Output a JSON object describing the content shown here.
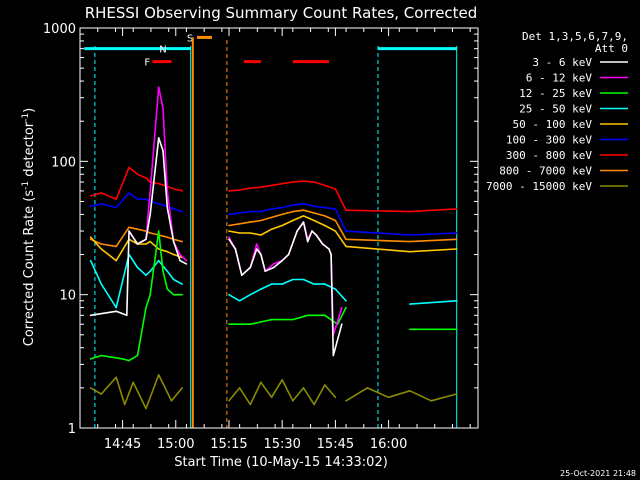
{
  "chart_data": {
    "type": "line",
    "title": "RHESSI Observing Summary Count Rates, Corrected",
    "ylabel_main": "Corrected Count Rate (s",
    "ylabel_exp1": "-1",
    "ylabel_mid": " detector",
    "ylabel_exp2": "-1",
    "ylabel_end": ")",
    "xlabel": "Start Time (10-May-15 14:33:02)",
    "footer": "25-Oct-2021 21:48",
    "legend_header": [
      "Det 1,3,5,6,7,9,",
      "Att 0"
    ],
    "yscale": "log",
    "ylim": [
      1,
      1000
    ],
    "y_ticks": [
      {
        "v": 1,
        "label": "1"
      },
      {
        "v": 10,
        "label": "10"
      },
      {
        "v": 100,
        "label": "100"
      },
      {
        "v": 1000,
        "label": "1000"
      }
    ],
    "xlim": [
      14.55,
      16.42
    ],
    "x_ticks": [
      {
        "v": 14.75,
        "label": "14:45"
      },
      {
        "v": 15.0,
        "label": "15:00"
      },
      {
        "v": 15.25,
        "label": "15:15"
      },
      {
        "v": 15.5,
        "label": "15:30"
      },
      {
        "v": 15.75,
        "label": "15:45"
      },
      {
        "v": 16.0,
        "label": "16:00"
      }
    ],
    "flags": [
      {
        "label": "N",
        "color": "#00ffff",
        "y": 700
      },
      {
        "label": "F",
        "color": "#ff0000",
        "y": 560
      },
      {
        "label": "S",
        "color": "#ff8c00",
        "y": 850
      }
    ],
    "night_lines": [
      14.62,
      15.07,
      15.95,
      16.32
    ],
    "saa_lines": [
      15.24
    ],
    "series": [
      {
        "name": "3 - 6 keV",
        "color": "#ffffff",
        "segments": [
          [
            [
              14.6,
              7
            ],
            [
              14.72,
              7.5
            ],
            [
              14.77,
              7
            ],
            [
              14.78,
              30
            ],
            [
              14.82,
              24
            ],
            [
              14.86,
              26
            ],
            [
              14.88,
              40
            ],
            [
              14.92,
              150
            ],
            [
              14.94,
              120
            ],
            [
              14.96,
              45
            ],
            [
              14.99,
              25
            ],
            [
              15.02,
              18
            ],
            [
              15.05,
              17
            ]
          ],
          [
            [
              15.25,
              26
            ],
            [
              15.28,
              22
            ],
            [
              15.31,
              14
            ],
            [
              15.35,
              16
            ],
            [
              15.38,
              22
            ],
            [
              15.4,
              20
            ],
            [
              15.42,
              15
            ],
            [
              15.46,
              16
            ],
            [
              15.5,
              18
            ],
            [
              15.53,
              20
            ],
            [
              15.57,
              30
            ],
            [
              15.6,
              35
            ],
            [
              15.62,
              25
            ],
            [
              15.64,
              30
            ],
            [
              15.66,
              28
            ],
            [
              15.69,
              24
            ],
            [
              15.72,
              22
            ],
            [
              15.73,
              20
            ],
            [
              15.74,
              3.5
            ],
            [
              15.78,
              6
            ]
          ]
        ]
      },
      {
        "name": "6 - 12 keV",
        "color": "#ff00ff",
        "segments": [
          [
            [
              14.78,
              30
            ],
            [
              14.82,
              24
            ],
            [
              14.86,
              26
            ],
            [
              14.88,
              60
            ],
            [
              14.92,
              360
            ],
            [
              14.94,
              250
            ],
            [
              14.96,
              60
            ],
            [
              14.99,
              25
            ],
            [
              15.02,
              20
            ],
            [
              15.05,
              18
            ]
          ],
          [
            [
              15.25,
              27
            ],
            [
              15.28,
              22
            ],
            [
              15.31,
              14
            ],
            [
              15.35,
              16
            ],
            [
              15.38,
              24
            ],
            [
              15.4,
              20
            ],
            [
              15.42,
              15
            ],
            [
              15.46,
              17
            ],
            [
              15.5,
              18
            ],
            [
              15.53,
              20
            ],
            [
              15.57,
              30
            ],
            [
              15.6,
              35
            ],
            [
              15.62,
              26
            ],
            [
              15.64,
              30
            ],
            [
              15.66,
              28
            ],
            [
              15.69,
              24
            ],
            [
              15.72,
              22
            ],
            [
              15.73,
              20
            ],
            [
              15.74,
              5
            ],
            [
              15.78,
              8
            ]
          ]
        ]
      },
      {
        "name": "12 - 25 keV",
        "color": "#00ff00",
        "segments": [
          [
            [
              14.6,
              3.3
            ],
            [
              14.65,
              3.5
            ],
            [
              14.75,
              3.3
            ],
            [
              14.78,
              3.2
            ],
            [
              14.82,
              3.5
            ],
            [
              14.86,
              8
            ],
            [
              14.88,
              10
            ],
            [
              14.92,
              30
            ],
            [
              14.94,
              15
            ],
            [
              14.96,
              11
            ],
            [
              14.99,
              10
            ],
            [
              15.03,
              10
            ]
          ],
          [
            [
              15.25,
              6
            ],
            [
              15.35,
              6
            ],
            [
              15.45,
              6.5
            ],
            [
              15.55,
              6.5
            ],
            [
              15.62,
              7
            ],
            [
              15.7,
              7
            ],
            [
              15.76,
              6
            ],
            [
              15.8,
              8
            ]
          ],
          [
            [
              16.1,
              5.5
            ],
            [
              16.32,
              5.5
            ]
          ]
        ]
      },
      {
        "name": "25 - 50 keV",
        "color": "#00ffff",
        "segments": [
          [
            [
              14.6,
              18
            ],
            [
              14.65,
              12
            ],
            [
              14.72,
              8
            ],
            [
              14.78,
              20
            ],
            [
              14.82,
              16
            ],
            [
              14.86,
              14
            ],
            [
              14.88,
              15
            ],
            [
              14.92,
              18
            ],
            [
              14.96,
              15
            ],
            [
              14.99,
              13
            ],
            [
              15.03,
              12
            ]
          ],
          [
            [
              15.25,
              10
            ],
            [
              15.3,
              9
            ],
            [
              15.35,
              10
            ],
            [
              15.4,
              11
            ],
            [
              15.45,
              12
            ],
            [
              15.5,
              12
            ],
            [
              15.55,
              13
            ],
            [
              15.6,
              13
            ],
            [
              15.65,
              12
            ],
            [
              15.7,
              12
            ],
            [
              15.75,
              11
            ],
            [
              15.8,
              9
            ]
          ],
          [
            [
              16.1,
              8.5
            ],
            [
              16.32,
              9
            ]
          ]
        ]
      },
      {
        "name": "50 - 100 keV",
        "color": "#ffc800",
        "segments": [
          [
            [
              14.6,
              27
            ],
            [
              14.65,
              22
            ],
            [
              14.72,
              18
            ],
            [
              14.78,
              26
            ],
            [
              14.82,
              24
            ],
            [
              14.86,
              24
            ],
            [
              14.88,
              25
            ],
            [
              14.92,
              22
            ],
            [
              14.96,
              21
            ],
            [
              14.99,
              20
            ],
            [
              15.03,
              19
            ]
          ],
          [
            [
              15.25,
              30
            ],
            [
              15.3,
              29
            ],
            [
              15.35,
              29
            ],
            [
              15.4,
              28
            ],
            [
              15.45,
              31
            ],
            [
              15.5,
              33
            ],
            [
              15.55,
              36
            ],
            [
              15.6,
              39
            ],
            [
              15.65,
              36
            ],
            [
              15.7,
              33
            ],
            [
              15.75,
              30
            ],
            [
              15.8,
              23
            ],
            [
              16.1,
              21
            ],
            [
              16.32,
              22
            ]
          ]
        ]
      },
      {
        "name": "100 - 300 keV",
        "color": "#0000ff",
        "segments": [
          [
            [
              14.6,
              46
            ],
            [
              14.65,
              48
            ],
            [
              14.72,
              45
            ],
            [
              14.78,
              58
            ],
            [
              14.82,
              52
            ],
            [
              14.86,
              52
            ],
            [
              14.88,
              50
            ],
            [
              14.92,
              48
            ],
            [
              14.96,
              46
            ],
            [
              14.99,
              44
            ],
            [
              15.03,
              42
            ]
          ],
          [
            [
              15.25,
              40
            ],
            [
              15.3,
              41
            ],
            [
              15.35,
              42
            ],
            [
              15.4,
              42
            ],
            [
              15.45,
              44
            ],
            [
              15.5,
              45
            ],
            [
              15.55,
              47
            ],
            [
              15.6,
              48
            ],
            [
              15.65,
              46
            ],
            [
              15.7,
              45
            ],
            [
              15.75,
              44
            ],
            [
              15.8,
              30
            ],
            [
              16.1,
              28
            ],
            [
              16.32,
              29
            ]
          ]
        ]
      },
      {
        "name": "300 - 800 keV",
        "color": "#ff0000",
        "segments": [
          [
            [
              14.6,
              55
            ],
            [
              14.65,
              58
            ],
            [
              14.72,
              52
            ],
            [
              14.78,
              90
            ],
            [
              14.82,
              80
            ],
            [
              14.86,
              75
            ],
            [
              14.88,
              70
            ],
            [
              14.92,
              68
            ],
            [
              14.96,
              65
            ],
            [
              14.99,
              62
            ],
            [
              15.03,
              60
            ]
          ],
          [
            [
              15.25,
              60
            ],
            [
              15.3,
              61
            ],
            [
              15.35,
              63
            ],
            [
              15.4,
              64
            ],
            [
              15.45,
              66
            ],
            [
              15.5,
              68
            ],
            [
              15.55,
              70
            ],
            [
              15.6,
              71
            ],
            [
              15.65,
              70
            ],
            [
              15.7,
              66
            ],
            [
              15.75,
              62
            ],
            [
              15.8,
              43
            ],
            [
              16.1,
              42
            ],
            [
              16.32,
              44
            ]
          ]
        ]
      },
      {
        "name": "800 - 7000 keV",
        "color": "#ff8c00",
        "segments": [
          [
            [
              14.6,
              26
            ],
            [
              14.65,
              24
            ],
            [
              14.72,
              23
            ],
            [
              14.78,
              32
            ],
            [
              14.82,
              31
            ],
            [
              14.86,
              30
            ],
            [
              14.88,
              29
            ],
            [
              14.92,
              28
            ],
            [
              14.96,
              27
            ],
            [
              14.99,
              26
            ],
            [
              15.03,
              25
            ]
          ],
          [
            [
              15.25,
              33
            ],
            [
              15.3,
              34
            ],
            [
              15.35,
              35
            ],
            [
              15.4,
              36
            ],
            [
              15.45,
              38
            ],
            [
              15.5,
              40
            ],
            [
              15.55,
              42
            ],
            [
              15.6,
              43
            ],
            [
              15.65,
              41
            ],
            [
              15.7,
              39
            ],
            [
              15.75,
              36
            ],
            [
              15.8,
              26
            ],
            [
              16.1,
              25
            ],
            [
              16.32,
              26
            ]
          ]
        ]
      },
      {
        "name": "7000 - 15000 keV",
        "color": "#8b8b00",
        "segments": [
          [
            [
              14.6,
              2.0
            ],
            [
              14.65,
              1.8
            ],
            [
              14.72,
              2.4
            ],
            [
              14.76,
              1.5
            ],
            [
              14.8,
              2.2
            ],
            [
              14.86,
              1.4
            ],
            [
              14.92,
              2.5
            ],
            [
              14.98,
              1.6
            ],
            [
              15.03,
              2.0
            ]
          ],
          [
            [
              15.25,
              1.6
            ],
            [
              15.3,
              2.0
            ],
            [
              15.35,
              1.5
            ],
            [
              15.4,
              2.2
            ],
            [
              15.45,
              1.7
            ],
            [
              15.5,
              2.3
            ],
            [
              15.55,
              1.6
            ],
            [
              15.6,
              2.0
            ],
            [
              15.65,
              1.5
            ],
            [
              15.7,
              2.1
            ],
            [
              15.75,
              1.7
            ]
          ],
          [
            [
              15.8,
              1.6
            ],
            [
              15.9,
              2.0
            ],
            [
              16.0,
              1.7
            ],
            [
              16.1,
              1.9
            ],
            [
              16.2,
              1.6
            ],
            [
              16.32,
              1.8
            ]
          ]
        ]
      }
    ]
  }
}
